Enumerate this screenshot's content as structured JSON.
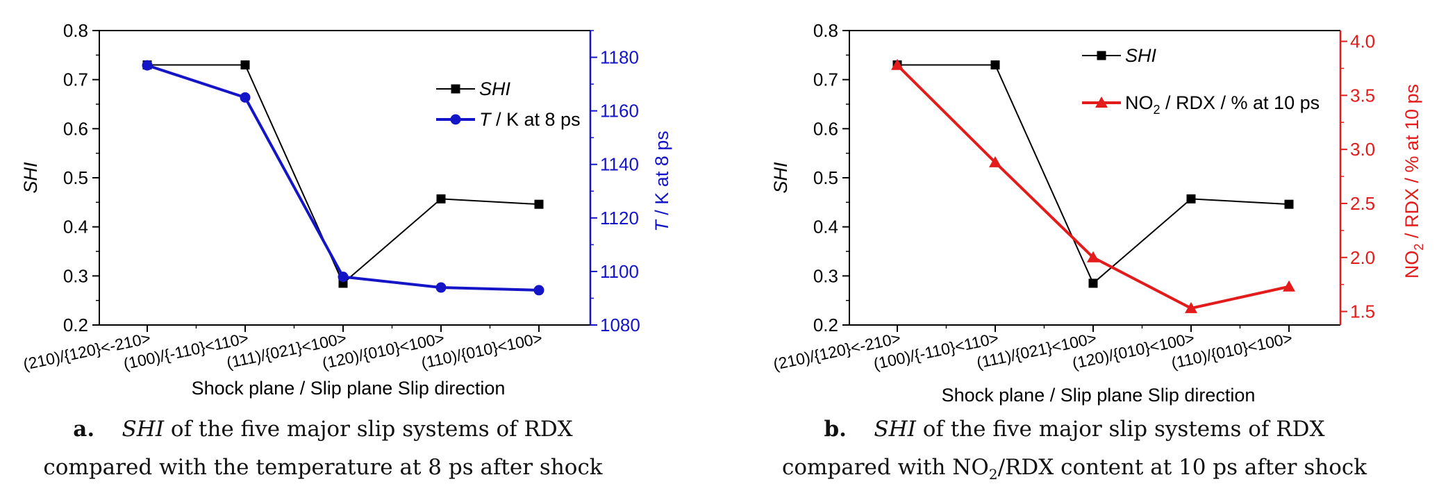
{
  "chart_data": [
    {
      "type": "line",
      "caption_letter": "a.",
      "caption_italic": "SHI",
      "caption_rest": " of the five major slip systems of RDX",
      "caption_line2": "compared with the temperature at 8 ps after shock",
      "xlabel": "Shock plane / Slip plane Slip direction",
      "ylabel": "SHI",
      "y2label_italic": "T",
      "y2label_rest": " / K at 8 ps",
      "categories": [
        "(210)/{120}<-210>",
        "(100)/{-110}<110>",
        "(111)/{021}<100>",
        "(120)/{010}<100>",
        "(110)/{010}<100>"
      ],
      "ylim": [
        0.2,
        0.8
      ],
      "yticks": [
        "0.2",
        "0.3",
        "0.4",
        "0.5",
        "0.6",
        "0.7",
        "0.8"
      ],
      "y2lim": [
        1080,
        1190
      ],
      "y2ticks": [
        "1080",
        "1100",
        "1120",
        "1140",
        "1160",
        "1180"
      ],
      "legend_position": "upper-right",
      "series": [
        {
          "name_italic": "SHI",
          "name_rest": "",
          "axis": "left",
          "color": "#000000",
          "marker": "square",
          "values": [
            0.73,
            0.73,
            0.285,
            0.457,
            0.446
          ]
        },
        {
          "name_italic": "T",
          "name_rest": " / K at 8 ps",
          "axis": "right",
          "color": "#1515c8",
          "marker": "circle",
          "values": [
            1177,
            1165,
            1098,
            1094,
            1093
          ]
        }
      ]
    },
    {
      "type": "line",
      "caption_letter": "b.",
      "caption_italic": "SHI",
      "caption_rest": " of the five major slip systems of RDX",
      "caption_line2_pre": "compared with NO",
      "caption_line2_sub": "2",
      "caption_line2_post": "/RDX content at 10 ps after shock",
      "xlabel": "Shock plane / Slip plane Slip direction",
      "ylabel": "SHI",
      "y2label_pre": "NO",
      "y2label_sub": "2",
      "y2label_post": " / RDX / % at 10 ps",
      "categories": [
        "(210)/{120}<-210>",
        "(100)/{-110}<110>",
        "(111)/{021}<100>",
        "(120)/{010}<100>",
        "(110)/{010}<100>"
      ],
      "ylim": [
        0.2,
        0.8
      ],
      "yticks": [
        "0.2",
        "0.3",
        "0.4",
        "0.5",
        "0.6",
        "0.7",
        "0.8"
      ],
      "y2lim": [
        1.375,
        4.1
      ],
      "y2ticks": [
        "1.5",
        "2.0",
        "2.5",
        "3.0",
        "3.5",
        "4.0"
      ],
      "legend_position": "upper-right",
      "series": [
        {
          "name_italic": "SHI",
          "axis": "left",
          "color": "#000000",
          "marker": "square",
          "values": [
            0.73,
            0.73,
            0.285,
            0.457,
            0.446
          ]
        },
        {
          "name_pre": "NO",
          "name_sub": "2",
          "name_post": " / RDX / % at 10 ps",
          "axis": "right",
          "color": "#e31b1b",
          "marker": "triangle",
          "values": [
            3.78,
            2.88,
            2.0,
            1.53,
            1.73
          ]
        }
      ]
    }
  ]
}
